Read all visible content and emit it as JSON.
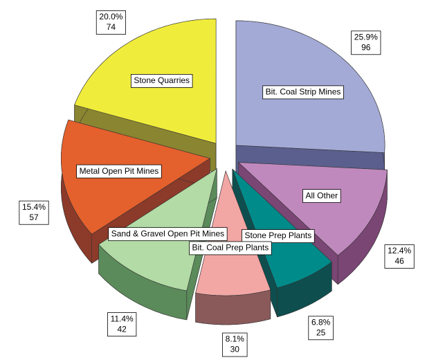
{
  "chart_data": {
    "type": "pie3d",
    "categories": [
      "Bit. Coal Strip Mines",
      "All Other",
      "Stone Prep Plants",
      "Bit. Coal Prep Plants",
      "Sand & Gravel Open Pit Mines",
      "Metal Open Pit Mines",
      "Stone Quarries"
    ],
    "values": [
      96,
      46,
      25,
      30,
      42,
      57,
      74
    ],
    "percent_labels": [
      "25.9%",
      "12.4%",
      "6.8%",
      "8.1%",
      "11.4%",
      "15.4%",
      "20.0%"
    ],
    "colors": [
      "#a3aad6",
      "#c089bd",
      "#008b8b",
      "#f2a7a5",
      "#b3dba5",
      "#e4602c",
      "#f0ec3c"
    ],
    "side_colors": [
      "#5a5f8e",
      "#7a4674",
      "#0e4e4e",
      "#8a5a5a",
      "#5b8a5b",
      "#8c3a2a",
      "#8a8530"
    ]
  }
}
